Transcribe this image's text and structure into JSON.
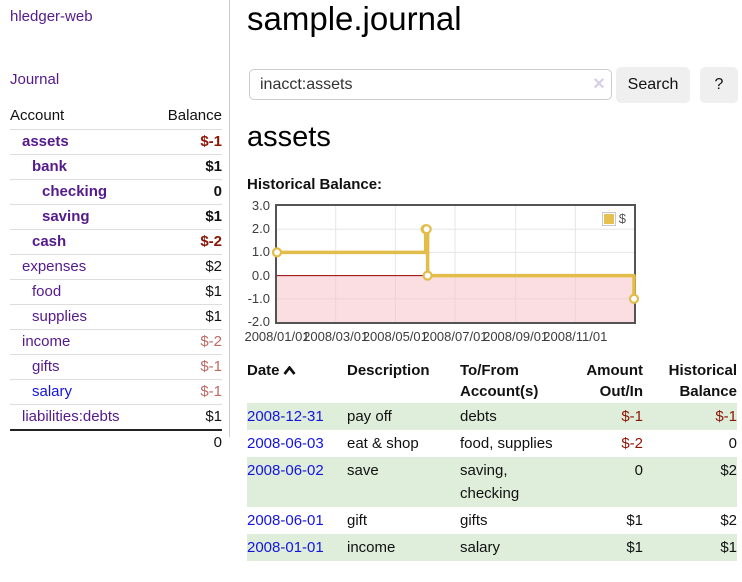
{
  "colors": {
    "accent_purple": "#551a8b",
    "link_blue": "#1414e0",
    "negative_dark_red": "#8c1505",
    "negative_light_red": "#bd6a63",
    "row_green": "#deeeda",
    "chart_gold": "#e3bd49",
    "chart_negative_pink": "#f6c3c8",
    "chart_zero_line": "#990000",
    "button_gray": "#efefef"
  },
  "sidebar": {
    "brand": "hledger-web",
    "nav_journal": "Journal",
    "table": {
      "account_header": "Account",
      "balance_header": "Balance"
    },
    "accounts": [
      {
        "name": "assets",
        "balance": "$-1",
        "depth": 1,
        "selected": true
      },
      {
        "name": "bank",
        "balance": "$1",
        "depth": 2,
        "selected": true
      },
      {
        "name": "checking",
        "balance": "0",
        "depth": 3,
        "selected": true
      },
      {
        "name": "saving",
        "balance": "$1",
        "depth": 3,
        "selected": true
      },
      {
        "name": "cash",
        "balance": "$-2",
        "depth": 2,
        "selected": true
      },
      {
        "name": "expenses",
        "balance": "$2",
        "depth": 1,
        "selected": false
      },
      {
        "name": "food",
        "balance": "$1",
        "depth": 2,
        "selected": false
      },
      {
        "name": "supplies",
        "balance": "$1",
        "depth": 2,
        "selected": false
      },
      {
        "name": "income",
        "balance": "$-2",
        "depth": 1,
        "selected": false
      },
      {
        "name": "gifts",
        "balance": "$-1",
        "depth": 2,
        "selected": false
      },
      {
        "name": "salary",
        "balance": "$-1",
        "depth": 2,
        "selected": false
      },
      {
        "name": "liabilities:debts",
        "balance": "$1",
        "depth": 1,
        "selected": false
      }
    ],
    "total": "0"
  },
  "main": {
    "title": "sample.journal",
    "search": {
      "value": "inacct:assets",
      "clear_icon": "×",
      "search_button": "Search",
      "help_button": "?"
    },
    "account_heading": "assets",
    "chart_label": "Historical Balance:"
  },
  "chart_data": {
    "type": "line",
    "step": true,
    "title": "Historical Balance:",
    "ylim": [
      -2.0,
      3.0
    ],
    "yticks": [
      "3.0",
      "2.0",
      "1.0",
      "0.0",
      "-1.0",
      "-2.0"
    ],
    "xticks": [
      "2008/01/01",
      "2008/03/01",
      "2008/05/01",
      "2008/07/01",
      "2008/09/01",
      "2008/11/01"
    ],
    "grid": true,
    "legend_position": "top-right",
    "series": [
      {
        "name": "$",
        "color": "#e3bd49",
        "points": [
          [
            "2008-01-01",
            1
          ],
          [
            "2008-06-01",
            2
          ],
          [
            "2008-06-02",
            2
          ],
          [
            "2008-06-03",
            0
          ],
          [
            "2008-12-31",
            -1
          ]
        ]
      }
    ],
    "negative_region_color": "#f6c3c8",
    "zero_line_color": "#990000",
    "grid_color": "#e6e6e6"
  },
  "register": {
    "headers": [
      {
        "label": "Date",
        "sort": "ascending"
      },
      {
        "label": "Description"
      },
      {
        "lines": [
          "To/From",
          "Account(s)"
        ]
      },
      {
        "lines": [
          "Amount",
          "Out/In"
        ]
      },
      {
        "lines": [
          "Historical",
          "Balance"
        ]
      }
    ],
    "rows": [
      {
        "date": "2008-12-31",
        "description": "pay off",
        "accounts": "debts",
        "amount": "$-1",
        "balance": "$-1"
      },
      {
        "date": "2008-06-03",
        "description": "eat & shop",
        "accounts": "food, supplies",
        "amount": "$-2",
        "balance": "0"
      },
      {
        "date": "2008-06-02",
        "description": "save",
        "accounts": "saving, checking",
        "amount": "0",
        "balance": "$2"
      },
      {
        "date": "2008-06-01",
        "description": "gift",
        "accounts": "gifts",
        "amount": "$1",
        "balance": "$2"
      },
      {
        "date": "2008-01-01",
        "description": "income",
        "accounts": "salary",
        "amount": "$1",
        "balance": "$1"
      }
    ]
  }
}
